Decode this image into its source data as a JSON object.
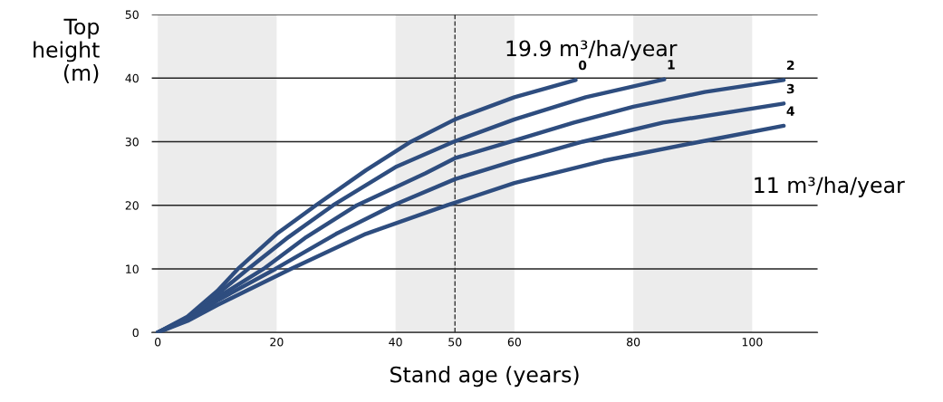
{
  "chart_data": {
    "type": "line",
    "xlabel": "Stand age (years)",
    "ylabel": "Top\nheight\n(m)",
    "xlim": [
      -1,
      111
    ],
    "ylim": [
      0,
      50
    ],
    "xticks": [
      0,
      20,
      40,
      50,
      60,
      80,
      100
    ],
    "yticks": [
      0,
      10,
      20,
      30,
      40,
      50
    ],
    "grid": "y",
    "legend": false,
    "marker": "none",
    "line_style": "solid",
    "annotations": [
      "19.9 m³/ha/year",
      "11 m³/ha/year"
    ],
    "ref_lines": [
      {
        "axis": "x",
        "value": 50,
        "label": null,
        "color": "#333333",
        "line_style": "dashed"
      }
    ],
    "bands": [
      {
        "axis": "x",
        "from": 0,
        "to": 20,
        "label": null,
        "color": "#ececec"
      },
      {
        "axis": "x",
        "from": 40,
        "to": 60,
        "label": null,
        "color": "#ececec"
      },
      {
        "axis": "x",
        "from": 80,
        "to": 100,
        "label": null,
        "color": "#ececec"
      }
    ],
    "series": [
      {
        "name": "0",
        "color": "#2e4d7f",
        "x": [
          0,
          5,
          10,
          13.5,
          20,
          26.6,
          35,
          42.6,
          50,
          60,
          70.3
        ],
        "values": [
          0,
          2.5,
          6.5,
          10,
          15.5,
          20,
          25.5,
          30,
          33.5,
          37,
          39.7
        ]
      },
      {
        "name": "1",
        "color": "#2e4d7f",
        "x": [
          0,
          5,
          10,
          15.2,
          22,
          29.5,
          40,
          49.8,
          60,
          72,
          85.2
        ],
        "values": [
          0,
          2.3,
          6,
          10,
          15,
          20,
          26,
          30,
          33.5,
          37,
          39.8
        ]
      },
      {
        "name": "2",
        "color": "#2e4d7f",
        "x": [
          0,
          5,
          10,
          17.8,
          25,
          33.5,
          45,
          50,
          59.4,
          70,
          80,
          92,
          105.3
        ],
        "values": [
          0,
          2.2,
          5.5,
          10,
          15,
          20,
          25,
          27.4,
          30,
          33,
          35.5,
          37.8,
          39.7
        ]
      },
      {
        "name": "3",
        "color": "#2e4d7f",
        "x": [
          0,
          5,
          10,
          19.8,
          30,
          39.6,
          50,
          60,
          71.5,
          85,
          105.3
        ],
        "values": [
          0,
          2,
          5,
          10,
          15.5,
          20,
          24.1,
          27,
          30,
          33,
          36
        ]
      },
      {
        "name": "4",
        "color": "#2e4d7f",
        "x": [
          0,
          5,
          10,
          22.4,
          35,
          48.7,
          60,
          75,
          91.3,
          105.3
        ],
        "values": [
          0,
          1.8,
          4.3,
          10,
          15.5,
          20,
          23.5,
          27,
          30,
          32.5
        ]
      }
    ]
  }
}
